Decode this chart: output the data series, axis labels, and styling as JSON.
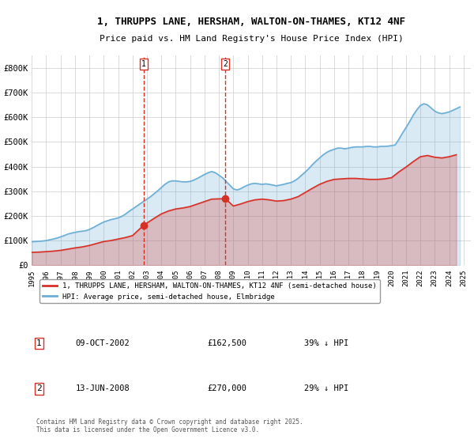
{
  "title_line1": "1, THRUPPS LANE, HERSHAM, WALTON-ON-THAMES, KT12 4NF",
  "title_line2": "Price paid vs. HM Land Registry's House Price Index (HPI)",
  "ylim": [
    0,
    850000
  ],
  "yticks": [
    0,
    100000,
    200000,
    300000,
    400000,
    500000,
    600000,
    700000,
    800000
  ],
  "ytick_labels": [
    "£0",
    "£100K",
    "£200K",
    "£300K",
    "£400K",
    "£500K",
    "£600K",
    "£700K",
    "£800K"
  ],
  "hpi_color": "#6baed6",
  "price_color": "#d73027",
  "marker1_color": "#d73027",
  "marker2_color": "#d73027",
  "vline_color": "#d73027",
  "bg_color": "#ffffff",
  "grid_color": "#cccccc",
  "legend_entries": [
    "1, THRUPPS LANE, HERSHAM, WALTON-ON-THAMES, KT12 4NF (semi-detached house)",
    "HPI: Average price, semi-detached house, Elmbridge"
  ],
  "purchase1": {
    "year": 2002.78,
    "price": 162500,
    "label": "1",
    "date": "09-OCT-2002",
    "pct": "39% ↓ HPI"
  },
  "purchase2": {
    "year": 2008.45,
    "price": 270000,
    "label": "2",
    "date": "13-JUN-2008",
    "pct": "29% ↓ HPI"
  },
  "footnote": "Contains HM Land Registry data © Crown copyright and database right 2025.\nThis data is licensed under the Open Government Licence v3.0.",
  "hpi_data": {
    "years": [
      1995.0,
      1995.25,
      1995.5,
      1995.75,
      1996.0,
      1996.25,
      1996.5,
      1996.75,
      1997.0,
      1997.25,
      1997.5,
      1997.75,
      1998.0,
      1998.25,
      1998.5,
      1998.75,
      1999.0,
      1999.25,
      1999.5,
      1999.75,
      2000.0,
      2000.25,
      2000.5,
      2000.75,
      2001.0,
      2001.25,
      2001.5,
      2001.75,
      2002.0,
      2002.25,
      2002.5,
      2002.75,
      2003.0,
      2003.25,
      2003.5,
      2003.75,
      2004.0,
      2004.25,
      2004.5,
      2004.75,
      2005.0,
      2005.25,
      2005.5,
      2005.75,
      2006.0,
      2006.25,
      2006.5,
      2006.75,
      2007.0,
      2007.25,
      2007.5,
      2007.75,
      2008.0,
      2008.25,
      2008.5,
      2008.75,
      2009.0,
      2009.25,
      2009.5,
      2009.75,
      2010.0,
      2010.25,
      2010.5,
      2010.75,
      2011.0,
      2011.25,
      2011.5,
      2011.75,
      2012.0,
      2012.25,
      2012.5,
      2012.75,
      2013.0,
      2013.25,
      2013.5,
      2013.75,
      2014.0,
      2014.25,
      2014.5,
      2014.75,
      2015.0,
      2015.25,
      2015.5,
      2015.75,
      2016.0,
      2016.25,
      2016.5,
      2016.75,
      2017.0,
      2017.25,
      2017.5,
      2017.75,
      2018.0,
      2018.25,
      2018.5,
      2018.75,
      2019.0,
      2019.25,
      2019.5,
      2019.75,
      2020.0,
      2020.25,
      2020.5,
      2020.75,
      2021.0,
      2021.25,
      2021.5,
      2021.75,
      2022.0,
      2022.25,
      2022.5,
      2022.75,
      2023.0,
      2023.25,
      2023.5,
      2023.75,
      2024.0,
      2024.25,
      2024.5,
      2024.75
    ],
    "values": [
      95000,
      96000,
      97000,
      98000,
      100000,
      103000,
      106000,
      110000,
      115000,
      120000,
      126000,
      130000,
      133000,
      136000,
      138000,
      140000,
      145000,
      152000,
      160000,
      168000,
      175000,
      180000,
      185000,
      188000,
      192000,
      198000,
      207000,
      218000,
      228000,
      238000,
      248000,
      258000,
      268000,
      278000,
      290000,
      302000,
      315000,
      328000,
      338000,
      342000,
      342000,
      340000,
      338000,
      338000,
      340000,
      345000,
      352000,
      360000,
      368000,
      375000,
      380000,
      375000,
      365000,
      355000,
      340000,
      325000,
      310000,
      305000,
      310000,
      318000,
      325000,
      330000,
      332000,
      330000,
      328000,
      330000,
      328000,
      325000,
      322000,
      325000,
      328000,
      332000,
      335000,
      342000,
      352000,
      365000,
      378000,
      392000,
      408000,
      422000,
      435000,
      448000,
      458000,
      465000,
      470000,
      475000,
      475000,
      472000,
      475000,
      478000,
      480000,
      480000,
      480000,
      482000,
      482000,
      480000,
      480000,
      482000,
      482000,
      483000,
      485000,
      488000,
      510000,
      535000,
      558000,
      582000,
      608000,
      630000,
      648000,
      655000,
      650000,
      638000,
      625000,
      618000,
      615000,
      618000,
      622000,
      628000,
      635000,
      642000
    ]
  },
  "price_data": {
    "years": [
      1995.0,
      1995.5,
      1996.0,
      1996.5,
      1997.0,
      1997.5,
      1998.0,
      1998.5,
      1999.0,
      1999.5,
      2000.0,
      2000.5,
      2001.0,
      2001.5,
      2002.0,
      2002.78,
      2003.5,
      2004.0,
      2004.5,
      2005.0,
      2005.5,
      2006.0,
      2006.5,
      2007.0,
      2007.5,
      2008.45,
      2009.0,
      2009.5,
      2010.0,
      2010.5,
      2011.0,
      2011.5,
      2012.0,
      2012.5,
      2013.0,
      2013.5,
      2014.0,
      2014.5,
      2015.0,
      2015.5,
      2016.0,
      2016.5,
      2017.0,
      2017.5,
      2018.0,
      2018.5,
      2019.0,
      2019.5,
      2020.0,
      2020.5,
      2021.0,
      2021.5,
      2022.0,
      2022.5,
      2023.0,
      2023.5,
      2024.0,
      2024.5
    ],
    "values": [
      52000,
      53000,
      55000,
      57000,
      60000,
      65000,
      70000,
      74000,
      80000,
      88000,
      96000,
      100000,
      106000,
      112000,
      120000,
      162500,
      190000,
      208000,
      220000,
      228000,
      232000,
      238000,
      248000,
      258000,
      268000,
      270000,
      240000,
      248000,
      258000,
      265000,
      268000,
      265000,
      260000,
      262000,
      268000,
      278000,
      295000,
      312000,
      328000,
      340000,
      348000,
      350000,
      352000,
      352000,
      350000,
      348000,
      348000,
      350000,
      355000,
      378000,
      398000,
      420000,
      440000,
      445000,
      438000,
      435000,
      440000,
      448000
    ]
  }
}
